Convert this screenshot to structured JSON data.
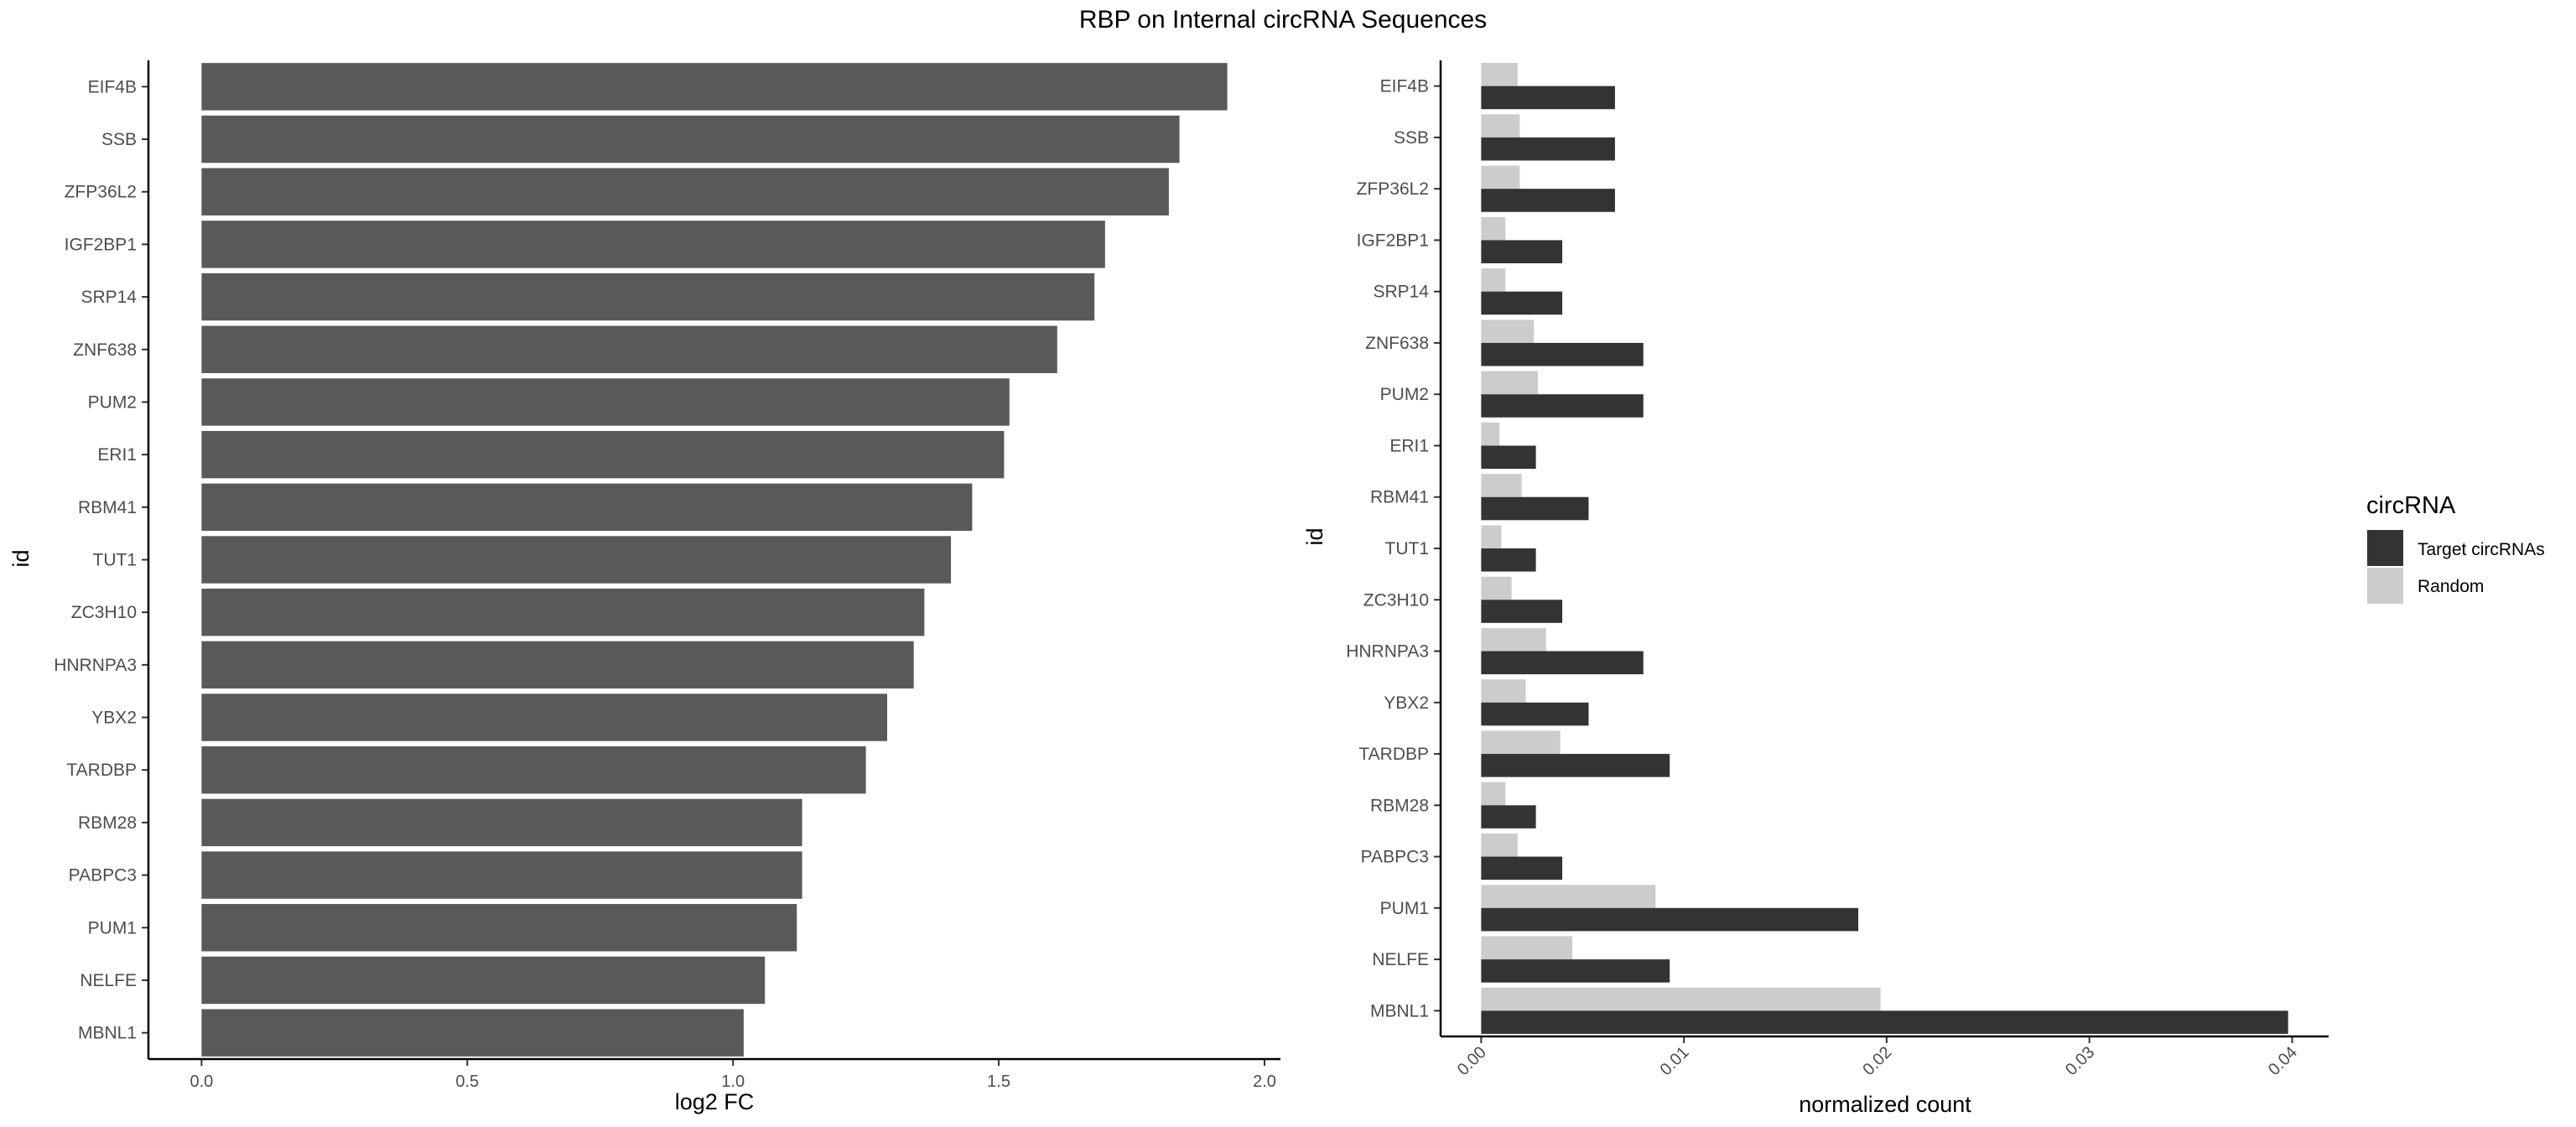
{
  "title": "RBP on Internal circRNA Sequences",
  "chart_data": [
    {
      "type": "bar",
      "orientation": "horizontal",
      "categories": [
        "EIF4B",
        "SSB",
        "ZFP36L2",
        "IGF2BP1",
        "SRP14",
        "ZNF638",
        "PUM2",
        "ERI1",
        "RBM41",
        "TUT1",
        "ZC3H10",
        "HNRNPA3",
        "YBX2",
        "TARDBP",
        "RBM28",
        "PABPC3",
        "PUM1",
        "NELFE",
        "MBNL1"
      ],
      "values": [
        1.93,
        1.84,
        1.82,
        1.7,
        1.68,
        1.61,
        1.52,
        1.51,
        1.45,
        1.41,
        1.36,
        1.34,
        1.29,
        1.25,
        1.13,
        1.13,
        1.12,
        1.06,
        1.02
      ],
      "xlabel": "log2 FC",
      "ylabel": "id",
      "xlim": [
        -0.1,
        2.03
      ],
      "xticks": [
        "0.0",
        "0.5",
        "1.0",
        "1.5",
        "2.0"
      ],
      "xtick_values": [
        0,
        0.5,
        1.0,
        1.5,
        2.0
      ],
      "bar_color": "#595959",
      "grid": false
    },
    {
      "type": "bar",
      "orientation": "horizontal",
      "grouped": true,
      "categories": [
        "EIF4B",
        "SSB",
        "ZFP36L2",
        "IGF2BP1",
        "SRP14",
        "ZNF638",
        "PUM2",
        "ERI1",
        "RBM41",
        "TUT1",
        "ZC3H10",
        "HNRNPA3",
        "YBX2",
        "TARDBP",
        "RBM28",
        "PABPC3",
        "PUM1",
        "NELFE",
        "MBNL1"
      ],
      "series": [
        {
          "name": "Target circRNAs",
          "color": "#333333",
          "values": [
            0.0066,
            0.0066,
            0.0066,
            0.004,
            0.004,
            0.008,
            0.008,
            0.0027,
            0.0053,
            0.0027,
            0.004,
            0.008,
            0.0053,
            0.0093,
            0.0027,
            0.004,
            0.0186,
            0.0093,
            0.0398
          ]
        },
        {
          "name": "Random",
          "color": "#cccccc",
          "values": [
            0.0018,
            0.0019,
            0.0019,
            0.0012,
            0.0012,
            0.0026,
            0.0028,
            0.0009,
            0.002,
            0.001,
            0.0015,
            0.0032,
            0.0022,
            0.0039,
            0.0012,
            0.0018,
            0.0086,
            0.0045,
            0.0197
          ]
        }
      ],
      "xlabel": "normalized count",
      "ylabel": "id",
      "xlim": [
        -0.002,
        0.0418
      ],
      "xticks": [
        "0.00",
        "0.01",
        "0.02",
        "0.03",
        "0.04"
      ],
      "xtick_values": [
        0,
        0.01,
        0.02,
        0.03,
        0.04
      ],
      "legend_title": "circRNA",
      "legend_position": "right",
      "grid": false
    }
  ]
}
